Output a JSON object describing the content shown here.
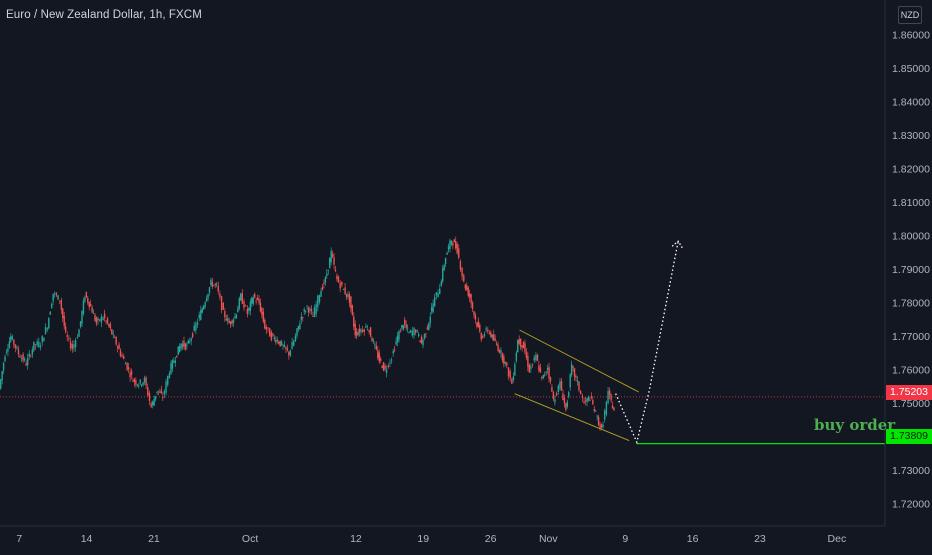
{
  "header": {
    "title": "Euro / New Zealand Dollar, 1h, FXCM",
    "currency": "NZD"
  },
  "colors": {
    "background": "#131722",
    "up": "#26a69a",
    "down": "#ef5350",
    "axis_text": "#b2b5be",
    "current_price_line": "#f23645",
    "order_line": "#00e600",
    "channel": "#c8b41e",
    "projection": "#ffffff"
  },
  "chart_data": {
    "type": "line",
    "y_ticks": [
      "1.86000",
      "1.85000",
      "1.84000",
      "1.83000",
      "1.82000",
      "1.81000",
      "1.80000",
      "1.79000",
      "1.78000",
      "1.77000",
      "1.76000",
      "1.75000",
      "1.73000",
      "1.72000"
    ],
    "y_range": [
      1.7135,
      1.8705
    ],
    "x_ticks": [
      {
        "label": "7",
        "day": 0
      },
      {
        "label": "14",
        "day": 7
      },
      {
        "label": "21",
        "day": 14
      },
      {
        "label": "Oct",
        "day": 24
      },
      {
        "label": "12",
        "day": 35
      },
      {
        "label": "19",
        "day": 42
      },
      {
        "label": "26",
        "day": 49
      },
      {
        "label": "Nov",
        "day": 55
      },
      {
        "label": "9",
        "day": 63
      },
      {
        "label": "16",
        "day": 70
      },
      {
        "label": "23",
        "day": 77
      },
      {
        "label": "Dec",
        "day": 85
      }
    ],
    "x_range": [
      -2.0,
      90.0
    ],
    "price_path": [
      [
        -2.0,
        1.7545
      ],
      [
        -1.4,
        1.765
      ],
      [
        -0.8,
        1.77
      ],
      [
        0.0,
        1.765
      ],
      [
        0.8,
        1.762
      ],
      [
        1.6,
        1.7675
      ],
      [
        2.3,
        1.768
      ],
      [
        3.0,
        1.7735
      ],
      [
        3.6,
        1.783
      ],
      [
        4.3,
        1.781
      ],
      [
        4.9,
        1.7705
      ],
      [
        5.6,
        1.7665
      ],
      [
        6.3,
        1.772
      ],
      [
        6.9,
        1.7825
      ],
      [
        7.5,
        1.779
      ],
      [
        8.1,
        1.774
      ],
      [
        8.8,
        1.776
      ],
      [
        9.4,
        1.773
      ],
      [
        10.0,
        1.769
      ],
      [
        10.6,
        1.765
      ],
      [
        11.3,
        1.761
      ],
      [
        11.9,
        1.757
      ],
      [
        12.5,
        1.756
      ],
      [
        13.1,
        1.757
      ],
      [
        13.8,
        1.749
      ],
      [
        14.4,
        1.754
      ],
      [
        15.0,
        1.752
      ],
      [
        15.7,
        1.76
      ],
      [
        16.3,
        1.764
      ],
      [
        16.9,
        1.768
      ],
      [
        17.5,
        1.767
      ],
      [
        18.1,
        1.771
      ],
      [
        18.8,
        1.776
      ],
      [
        19.4,
        1.781
      ],
      [
        20.0,
        1.786
      ],
      [
        20.6,
        1.785
      ],
      [
        21.3,
        1.777
      ],
      [
        21.9,
        1.774
      ],
      [
        22.5,
        1.776
      ],
      [
        23.1,
        1.782
      ],
      [
        23.8,
        1.777
      ],
      [
        24.4,
        1.782
      ],
      [
        25.0,
        1.78
      ],
      [
        25.6,
        1.773
      ],
      [
        26.3,
        1.77
      ],
      [
        26.9,
        1.769
      ],
      [
        27.5,
        1.767
      ],
      [
        28.1,
        1.765
      ],
      [
        28.8,
        1.77
      ],
      [
        29.4,
        1.776
      ],
      [
        30.0,
        1.779
      ],
      [
        30.6,
        1.776
      ],
      [
        31.3,
        1.783
      ],
      [
        31.9,
        1.787
      ],
      [
        32.5,
        1.795
      ],
      [
        33.1,
        1.787
      ],
      [
        33.8,
        1.784
      ],
      [
        34.4,
        1.781
      ],
      [
        35.0,
        1.771
      ],
      [
        35.6,
        1.772
      ],
      [
        36.3,
        1.773
      ],
      [
        36.9,
        1.768
      ],
      [
        37.5,
        1.763
      ],
      [
        38.1,
        1.76
      ],
      [
        38.8,
        1.764
      ],
      [
        39.4,
        1.77
      ],
      [
        40.0,
        1.774
      ],
      [
        40.6,
        1.771
      ],
      [
        41.3,
        1.772
      ],
      [
        41.9,
        1.768
      ],
      [
        42.5,
        1.773
      ],
      [
        43.1,
        1.78
      ],
      [
        43.8,
        1.785
      ],
      [
        44.4,
        1.794
      ],
      [
        45.0,
        1.799
      ],
      [
        45.6,
        1.796
      ],
      [
        46.3,
        1.786
      ],
      [
        46.9,
        1.782
      ],
      [
        47.5,
        1.775
      ],
      [
        48.1,
        1.77
      ],
      [
        48.8,
        1.772
      ],
      [
        49.4,
        1.769
      ],
      [
        50.0,
        1.766
      ],
      [
        50.6,
        1.762
      ],
      [
        51.3,
        1.756
      ],
      [
        51.9,
        1.769
      ],
      [
        52.5,
        1.767
      ],
      [
        53.1,
        1.76
      ],
      [
        53.8,
        1.764
      ],
      [
        54.4,
        1.757
      ],
      [
        55.0,
        1.761
      ],
      [
        55.6,
        1.751
      ],
      [
        56.3,
        1.756
      ],
      [
        56.9,
        1.748
      ],
      [
        57.5,
        1.761
      ],
      [
        58.1,
        1.756
      ],
      [
        58.8,
        1.75
      ],
      [
        59.4,
        1.752
      ],
      [
        60.0,
        1.747
      ],
      [
        60.6,
        1.742
      ],
      [
        61.3,
        1.753
      ],
      [
        61.9,
        1.748
      ]
    ],
    "channel": {
      "upper": [
        [
          52.0,
          1.772
        ],
        [
          64.4,
          1.7535
        ]
      ],
      "lower": [
        [
          51.5,
          1.753
        ],
        [
          63.4,
          1.739
        ]
      ]
    },
    "projection_path": [
      [
        62.0,
        1.753
      ],
      [
        64.2,
        1.7385
      ],
      [
        65.5,
        1.754
      ],
      [
        68.5,
        1.7985
      ],
      [
        69.3,
        1.7965
      ]
    ],
    "current_price": {
      "value": 1.75203,
      "label": "1.75203"
    },
    "buy_order": {
      "value": 1.73809,
      "label": "1.73809",
      "from_day": 64.2,
      "text": "buy order"
    },
    "legend": "none",
    "grid": false
  }
}
